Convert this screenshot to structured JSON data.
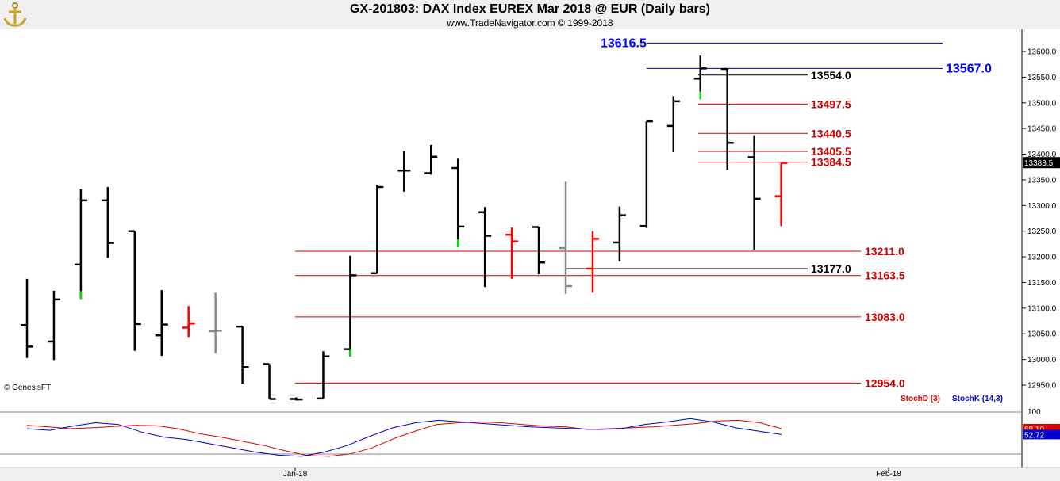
{
  "header": {
    "title": "GX-201803:  DAX Index EUREX Mar 2018 @ EUR  (Daily bars)",
    "subtitle": "www.TradeNavigator.com © 1999-2018",
    "watermark": "© GenesisFT"
  },
  "colors": {
    "bar_default": "#000000",
    "bar_down": "#ff0000",
    "bar_up": "#00dd00",
    "bar_neutral": "#888888",
    "level_line": "#cc0000",
    "target_line": "#0000aa",
    "stoch_d": "#dd0000",
    "stoch_k": "#0000cc"
  },
  "chart_data": [
    {
      "type": "ohlc",
      "title": "GX-201803:  DAX Index EUREX Mar 2018 @ EUR  (Daily bars)",
      "y_axis": {
        "min": 12920,
        "max": 13640,
        "ticks": [
          "12950.0",
          "13000.0",
          "13050.0",
          "13100.0",
          "13150.0",
          "13200.0",
          "13250.0",
          "13300.0",
          "13350.0",
          "13400.0",
          "13450.0",
          "13500.0",
          "13550.0",
          "13600.0"
        ],
        "last_price": "13383.5"
      },
      "x_axis": {
        "labels": [
          "Jan-18",
          "Feb-18"
        ]
      },
      "bars": [
        {
          "o": 13067,
          "h": 13157,
          "l": 13003,
          "c": 13025,
          "col": "k"
        },
        {
          "o": 13035,
          "h": 13134,
          "l": 12999,
          "c": 13117,
          "col": "k"
        },
        {
          "o": 13185,
          "h": 13332,
          "l": 13118,
          "c": 13310,
          "col": "g"
        },
        {
          "o": 13310,
          "h": 13336,
          "l": 13198,
          "c": 13227,
          "col": "k"
        },
        {
          "o": 13250,
          "h": 13250,
          "l": 13017,
          "c": 13069,
          "col": "k"
        },
        {
          "o": 13047,
          "h": 13135,
          "l": 13007,
          "c": 13068,
          "col": "k"
        },
        {
          "o": 13062,
          "h": 13104,
          "l": 13044,
          "c": 13070,
          "col": "r"
        },
        {
          "o": 13055,
          "h": 13130,
          "l": 13012,
          "c": 13056,
          "col": "n"
        },
        {
          "o": 13064,
          "h": 13064,
          "l": 12953,
          "c": 12985,
          "col": "k"
        },
        {
          "o": 12991,
          "h": 12991,
          "l": 12923,
          "c": 12923,
          "col": "k"
        },
        {
          "o": 12923,
          "h": 12926,
          "l": 12920,
          "c": 12922,
          "col": "k"
        },
        {
          "o": 12924,
          "h": 13016,
          "l": 12924,
          "c": 13006,
          "col": "k"
        },
        {
          "o": 13020,
          "h": 13202,
          "l": 13006,
          "c": 13164,
          "col": "g"
        },
        {
          "o": 13168,
          "h": 13340,
          "l": 13168,
          "c": 13336,
          "col": "k"
        },
        {
          "o": 13368,
          "h": 13406,
          "l": 13327,
          "c": 13368,
          "col": "k"
        },
        {
          "o": 13363,
          "h": 13418,
          "l": 13360,
          "c": 13395,
          "col": "k"
        },
        {
          "o": 13373,
          "h": 13391,
          "l": 13219,
          "c": 13259,
          "col": "g"
        },
        {
          "o": 13287,
          "h": 13297,
          "l": 13141,
          "c": 13241,
          "col": "k"
        },
        {
          "o": 13243,
          "h": 13257,
          "l": 13157,
          "c": 13230,
          "col": "r"
        },
        {
          "o": 13258,
          "h": 13258,
          "l": 13166,
          "c": 13189,
          "col": "k"
        },
        {
          "o": 13217,
          "h": 13346,
          "l": 13128,
          "c": 13143,
          "col": "n"
        },
        {
          "o": 13177,
          "h": 13250,
          "l": 13130,
          "c": 13235,
          "col": "r"
        },
        {
          "o": 13228,
          "h": 13298,
          "l": 13191,
          "c": 13281,
          "col": "k"
        },
        {
          "o": 13260,
          "h": 13464,
          "l": 13256,
          "c": 13464,
          "col": "k"
        },
        {
          "o": 13455,
          "h": 13513,
          "l": 13404,
          "c": 13503,
          "col": "k"
        },
        {
          "o": 13547,
          "h": 13592,
          "l": 13507,
          "c": 13567,
          "col": "g"
        },
        {
          "o": 13566,
          "h": 13566,
          "l": 13369,
          "c": 13422,
          "col": "k"
        },
        {
          "o": 13394,
          "h": 13437,
          "l": 13214,
          "c": 13313,
          "col": "k"
        },
        {
          "o": 13318,
          "h": 13383,
          "l": 13260,
          "c": 13383,
          "col": "r"
        }
      ],
      "levels": [
        {
          "value": 13616.5,
          "label": "13616.5",
          "kind": "target"
        },
        {
          "value": 13567.0,
          "label": "13567.0",
          "kind": "target"
        },
        {
          "value": 13554.0,
          "label": "13554.0",
          "kind": "black"
        },
        {
          "value": 13497.5,
          "label": "13497.5",
          "kind": "red"
        },
        {
          "value": 13440.5,
          "label": "13440.5",
          "kind": "red"
        },
        {
          "value": 13405.5,
          "label": "13405.5",
          "kind": "red"
        },
        {
          "value": 13384.5,
          "label": "13384.5",
          "kind": "red"
        },
        {
          "value": 13211.0,
          "label": "13211.0",
          "kind": "red"
        },
        {
          "value": 13177.0,
          "label": "13177.0",
          "kind": "black"
        },
        {
          "value": 13163.5,
          "label": "13163.5",
          "kind": "red"
        },
        {
          "value": 13083.0,
          "label": "13083.0",
          "kind": "red"
        },
        {
          "value": 12954.0,
          "label": "12954.0",
          "kind": "red"
        }
      ]
    },
    {
      "type": "line",
      "y_axis": {
        "min": 0,
        "max": 100,
        "ticks": [
          "100"
        ]
      },
      "series": [
        {
          "name": "StochD (3)",
          "color": "#dd0000",
          "value_label": "68.10",
          "values": [
            76,
            72,
            68,
            70,
            73,
            76,
            75,
            68,
            56,
            48,
            38,
            28,
            15,
            4,
            2,
            8,
            22,
            44,
            62,
            78,
            82,
            84,
            82,
            78,
            74,
            72,
            66,
            68,
            70,
            72,
            76,
            80,
            86,
            88,
            82,
            68
          ]
        },
        {
          "name": "StochK (14,3)",
          "color": "#0000cc",
          "value_label": "52.72",
          "values": [
            68,
            64,
            74,
            82,
            78,
            60,
            48,
            42,
            32,
            22,
            12,
            5,
            2,
            12,
            28,
            50,
            70,
            82,
            88,
            84,
            80,
            76,
            72,
            70,
            68,
            66,
            68,
            78,
            84,
            92,
            84,
            70,
            62,
            54
          ]
        }
      ]
    }
  ]
}
